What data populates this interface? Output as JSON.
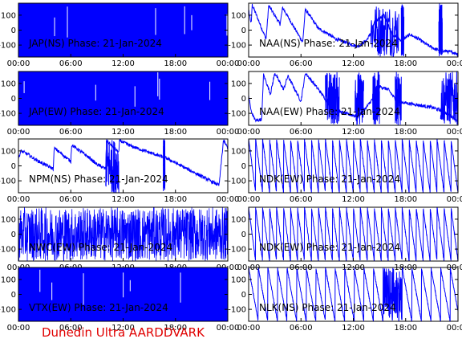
{
  "footer": "Dunedin Ultra AARDDVARK",
  "colors": {
    "trace": "#0000ff",
    "axes": "#000000",
    "footer": "#e00000",
    "background": "#ffffff"
  },
  "chart_data": [
    {
      "type": "line",
      "title": "JAP(NS) Phase: 21-Jan-2024",
      "xticks": [
        "00:00",
        "06:00",
        "12:00",
        "18:00",
        "00:00"
      ],
      "yticks": [
        "100",
        "0",
        "-100"
      ],
      "xlim": [
        0,
        24
      ],
      "ylim": [
        -180,
        180
      ],
      "series": [
        {
          "pattern": "solid"
        }
      ]
    },
    {
      "type": "line",
      "title": "NAA(NS) Phase: 21-Jan-2024",
      "xticks": [
        "00:00",
        "06:00",
        "12:00",
        "18:00",
        "00:00"
      ],
      "yticks": [
        "100",
        "0",
        "-100"
      ],
      "xlim": [
        0,
        24
      ],
      "ylim": [
        -180,
        180
      ],
      "series": [
        {
          "pattern": "mixed",
          "x": [
            0,
            0.3,
            0.4,
            2.0,
            2.3,
            3.6,
            3.9,
            6.2,
            6.5,
            8.0,
            9.0,
            10.0,
            11.5,
            12.5,
            13.5,
            14.0,
            14.5,
            15.5,
            16.5,
            17.5,
            18.5,
            19.5,
            20.5,
            21.5,
            22.5,
            23.5,
            24
          ],
          "y": [
            130,
            40,
            170,
            -60,
            165,
            40,
            150,
            -80,
            140,
            10,
            -20,
            -60,
            -90,
            -110,
            -70,
            -20,
            60,
            100,
            -30,
            -70,
            -30,
            -60,
            -100,
            -130,
            -140,
            -150,
            -160
          ],
          "noisy_spans": [
            [
              14.0,
              17.2
            ],
            [
              17.5,
              17.8
            ],
            [
              21.8,
              22.2
            ]
          ]
        }
      ]
    },
    {
      "type": "line",
      "title": "JAP(EW) Phase: 21-Jan-2024",
      "xticks": [
        "00:00",
        "06:00",
        "12:00",
        "18:00",
        "00:00"
      ],
      "yticks": [
        "100",
        "0",
        "-100"
      ],
      "xlim": [
        0,
        24
      ],
      "ylim": [
        -180,
        180
      ],
      "series": [
        {
          "pattern": "solid"
        }
      ]
    },
    {
      "type": "line",
      "title": "NAA(EW) Phase: 21-Jan-2024",
      "xticks": [
        "00:00",
        "06:00",
        "12:00",
        "18:00",
        "00:00"
      ],
      "yticks": [
        "100",
        "0",
        "-100"
      ],
      "xlim": [
        0,
        24
      ],
      "ylim": [
        -180,
        180
      ],
      "series": [
        {
          "pattern": "mixed",
          "x": [
            0,
            0.3,
            0.8,
            1.5,
            1.7,
            2.5,
            3.0,
            4.0,
            4.5,
            6.0,
            6.5,
            8.0,
            9.0,
            10.0,
            11.0,
            12.5,
            13.5,
            14.5,
            15.0,
            16.0,
            17.0,
            18.0,
            19.0,
            20.0,
            21.0,
            22.0,
            23.0,
            24
          ],
          "y": [
            20,
            -90,
            -150,
            -140,
            160,
            30,
            170,
            60,
            150,
            -20,
            170,
            60,
            -20,
            -80,
            -100,
            -120,
            -60,
            20,
            80,
            60,
            -20,
            -30,
            -40,
            -50,
            -60,
            -80,
            -110,
            -150
          ],
          "noisy_spans": [
            [
              8.8,
              10.4
            ],
            [
              12.2,
              13.2
            ],
            [
              14.2,
              15.0
            ],
            [
              16.8,
              17.5
            ],
            [
              22.0,
              24.0
            ]
          ]
        }
      ]
    },
    {
      "type": "line",
      "title": "NPM(NS) Phase: 21-Jan-2024",
      "xticks": [
        "00:00",
        "06:00",
        "12:00",
        "18:00",
        "00:00"
      ],
      "yticks": [
        "100",
        "0",
        "-100"
      ],
      "xlim": [
        0,
        24
      ],
      "ylim": [
        -180,
        180
      ],
      "series": [
        {
          "pattern": "mixed",
          "x": [
            0,
            0.3,
            1.0,
            2.0,
            3.0,
            4.0,
            4.1,
            6.0,
            6.1,
            8.0,
            9.0,
            10.0,
            10.1,
            11.5,
            11.6,
            13.0,
            14.0,
            15.0,
            16.0,
            17.0,
            18.0,
            19.0,
            20.0,
            21.0,
            22.0,
            23.0,
            23.5,
            24
          ],
          "y": [
            50,
            100,
            80,
            40,
            10,
            -20,
            120,
            30,
            140,
            60,
            10,
            -20,
            170,
            90,
            170,
            130,
            110,
            90,
            70,
            50,
            20,
            -10,
            -40,
            -70,
            -100,
            -130,
            170,
            120
          ],
          "noisy_spans": [
            [
              10.0,
              11.5
            ],
            [
              16.6,
              16.8
            ]
          ]
        }
      ]
    },
    {
      "type": "line",
      "title": "NDK(EW) Phase: 21-Jan-2024",
      "xticks": [
        "00:00",
        "06:00",
        "12:00",
        "18:00",
        "00:00"
      ],
      "yticks": [
        "100",
        "0",
        "-100"
      ],
      "xlim": [
        0,
        24
      ],
      "ylim": [
        -180,
        180
      ],
      "series": [
        {
          "pattern": "wraps",
          "period_hours": 0.8,
          "noisy_spans": []
        }
      ]
    },
    {
      "type": "line",
      "title": "NWC(EW) Phase: 21-Jan-2024",
      "xticks": [
        "00:00",
        "06:00",
        "12:00",
        "18:00",
        "00:00"
      ],
      "yticks": [
        "100",
        "0",
        "-100"
      ],
      "xlim": [
        0,
        24
      ],
      "ylim": [
        -180,
        180
      ],
      "series": [
        {
          "pattern": "noise",
          "noisy_spans": [
            [
              0,
              24
            ]
          ]
        }
      ]
    },
    {
      "type": "line",
      "title": "NDK(EW) Phase: 21-Jan-2024",
      "xticks": [
        "00:00",
        "06:00",
        "12:00",
        "18:00",
        "00:00"
      ],
      "yticks": [
        "100",
        "0",
        "-100"
      ],
      "xlim": [
        0,
        24
      ],
      "ylim": [
        -180,
        180
      ],
      "series": [
        {
          "pattern": "wraps",
          "period_hours": 0.8,
          "noisy_spans": []
        }
      ]
    },
    {
      "type": "line",
      "title": "VTX(EW) Phase: 21-Jan-2024",
      "xticks": [
        "00:00",
        "06:00",
        "12:00",
        "18:00",
        "00:00"
      ],
      "yticks": [
        "100",
        "0",
        "-100"
      ],
      "xlim": [
        0,
        24
      ],
      "ylim": [
        -180,
        180
      ],
      "series": [
        {
          "pattern": "solid"
        }
      ]
    },
    {
      "type": "line",
      "title": "NLK(NS) Phase: 21-Jan-2024",
      "xticks": [
        "00:00",
        "06:00",
        "12:00",
        "18:00",
        "00:00"
      ],
      "yticks": [
        "100",
        "0",
        "-100"
      ],
      "xlim": [
        0,
        24
      ],
      "ylim": [
        -180,
        180
      ],
      "series": [
        {
          "pattern": "wraps",
          "period_hours": 1.1,
          "noisy_spans": [
            [
              15.5,
              17.5
            ]
          ]
        }
      ]
    }
  ]
}
